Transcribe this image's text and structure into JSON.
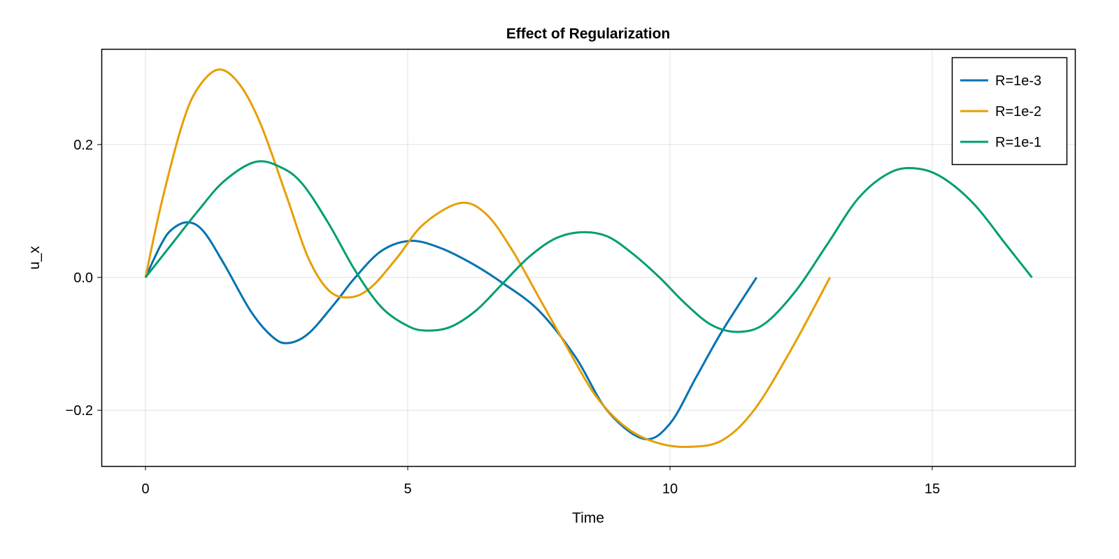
{
  "chart_data": {
    "type": "line",
    "title": "Effect of Regularization",
    "xlabel": "Time",
    "ylabel": "u_x",
    "xlim": [
      -0.84,
      17.72
    ],
    "ylim": [
      -0.284,
      0.344
    ],
    "xticks": [
      0,
      5,
      10,
      15
    ],
    "xtick_labels": [
      "0",
      "5",
      "10",
      "15"
    ],
    "yticks": [
      -0.2,
      0.0,
      0.2
    ],
    "ytick_labels": [
      "−0.2",
      "0.0",
      "0.2"
    ],
    "grid": true,
    "legend_position": "top-right",
    "series": [
      {
        "name": "R=1e-3",
        "color": "#0072b2",
        "x": [
          0,
          0.3,
          0.5,
          0.8,
          1.1,
          1.5,
          2.0,
          2.4,
          2.7,
          3.1,
          3.6,
          4.0,
          4.5,
          5.05,
          5.6,
          6.2,
          6.8,
          7.5,
          8.2,
          8.8,
          9.5,
          10.0,
          10.5,
          11.0,
          11.65
        ],
        "y": [
          0,
          0.05,
          0.072,
          0.083,
          0.07,
          0.02,
          -0.05,
          -0.088,
          -0.099,
          -0.085,
          -0.04,
          0.0,
          0.04,
          0.055,
          0.045,
          0.022,
          -0.008,
          -0.05,
          -0.12,
          -0.2,
          -0.243,
          -0.22,
          -0.15,
          -0.08,
          0
        ]
      },
      {
        "name": "R=1e-2",
        "color": "#e69f00",
        "x": [
          0,
          0.3,
          0.7,
          1.0,
          1.4,
          1.8,
          2.2,
          2.7,
          3.1,
          3.5,
          3.9,
          4.3,
          4.8,
          5.3,
          6.0,
          6.5,
          7.0,
          7.5,
          8.0,
          8.6,
          9.2,
          9.8,
          10.4,
          11.0,
          11.6,
          12.3,
          13.05
        ],
        "y": [
          0,
          0.11,
          0.23,
          0.285,
          0.313,
          0.29,
          0.23,
          0.12,
          0.03,
          -0.02,
          -0.03,
          -0.015,
          0.03,
          0.08,
          0.112,
          0.095,
          0.04,
          -0.03,
          -0.1,
          -0.18,
          -0.228,
          -0.25,
          -0.255,
          -0.245,
          -0.2,
          -0.11,
          0
        ]
      },
      {
        "name": "R=1e-1",
        "color": "#009e73",
        "x": [
          0,
          0.5,
          1.0,
          1.5,
          2.1,
          2.6,
          3.0,
          3.5,
          4.0,
          4.5,
          5.0,
          5.35,
          5.8,
          6.3,
          6.8,
          7.3,
          7.8,
          8.3,
          8.8,
          9.3,
          9.8,
          10.3,
          10.8,
          11.3,
          11.8,
          12.4,
          13.0,
          13.6,
          14.2,
          14.7,
          15.2,
          15.8,
          16.4,
          16.9
        ],
        "y": [
          0,
          0.05,
          0.1,
          0.145,
          0.174,
          0.165,
          0.14,
          0.08,
          0.01,
          -0.045,
          -0.073,
          -0.08,
          -0.075,
          -0.05,
          -0.01,
          0.03,
          0.058,
          0.068,
          0.062,
          0.035,
          0.0,
          -0.04,
          -0.072,
          -0.082,
          -0.07,
          -0.02,
          0.05,
          0.12,
          0.158,
          0.164,
          0.15,
          0.11,
          0.05,
          0
        ]
      }
    ]
  }
}
